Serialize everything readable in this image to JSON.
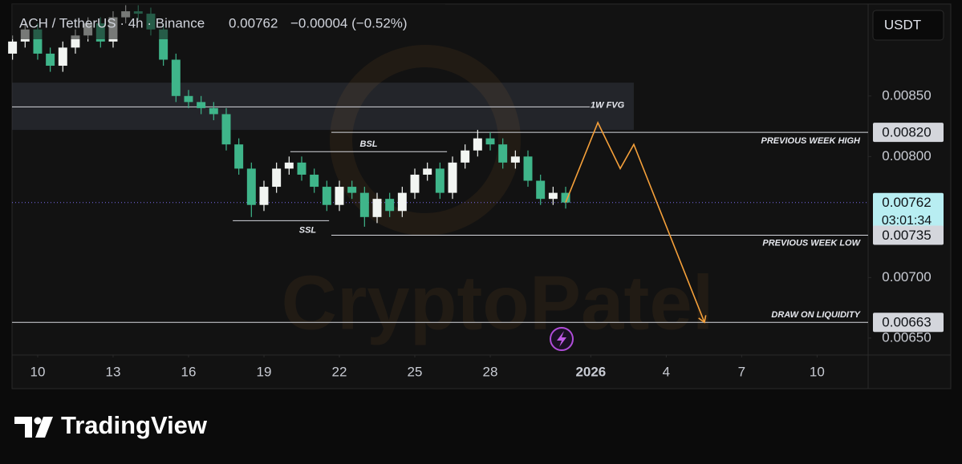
{
  "chart_data": {
    "type": "candlestick",
    "header": {
      "symbol": "ACH / TetherUS · 4h · Binance",
      "price": "0.00762",
      "change": "−0.00004 (−0.52%)"
    },
    "currency": "USDT",
    "watermark": "CryptoPatel",
    "brand": "TradingView",
    "up_color": "#f2f5f2",
    "down_color": "#3fb58a",
    "xlim": [
      -1.02,
      33.03
    ],
    "ylim": [
      0.00636,
      0.00926
    ],
    "xticks": [
      {
        "value": 0,
        "label": "10"
      },
      {
        "value": 3,
        "label": "13"
      },
      {
        "value": 6,
        "label": "16"
      },
      {
        "value": 9,
        "label": "19"
      },
      {
        "value": 12,
        "label": "22"
      },
      {
        "value": 15,
        "label": "25"
      },
      {
        "value": 18,
        "label": "28"
      },
      {
        "value": 22,
        "label": "2026"
      },
      {
        "value": 25,
        "label": "4"
      },
      {
        "value": 28,
        "label": "7"
      },
      {
        "value": 31,
        "label": "10"
      }
    ],
    "yticks": [
      {
        "value": 0.0085,
        "label": "0.00850"
      },
      {
        "value": 0.008,
        "label": "0.00800"
      },
      {
        "value": 0.007,
        "label": "0.00700"
      },
      {
        "value": 0.0065,
        "label": "0.00650"
      }
    ],
    "x": [
      -1,
      -0.5,
      0,
      0.5,
      1,
      1.5,
      2,
      2.5,
      3,
      3.5,
      4,
      4.5,
      5,
      5.5,
      6,
      6.5,
      7,
      7.5,
      8,
      8.5,
      9,
      9.5,
      10,
      10.5,
      11,
      11.5,
      12,
      12.5,
      13,
      13.5,
      14,
      14.5,
      15,
      15.5,
      16,
      16.5,
      17,
      17.5,
      18,
      18.5,
      19,
      19.5,
      20,
      20.5,
      21
    ],
    "open": [
      0.00885,
      0.00895,
      0.00905,
      0.00885,
      0.00875,
      0.0089,
      0.009,
      0.0091,
      0.00895,
      0.00915,
      0.0092,
      0.00918,
      0.00905,
      0.0088,
      0.0085,
      0.00845,
      0.0084,
      0.00835,
      0.0081,
      0.0079,
      0.0076,
      0.00775,
      0.0079,
      0.00795,
      0.00785,
      0.00775,
      0.0076,
      0.00775,
      0.0077,
      0.0075,
      0.00765,
      0.00755,
      0.0077,
      0.00785,
      0.0079,
      0.0077,
      0.00795,
      0.00805,
      0.00815,
      0.0081,
      0.00795,
      0.008,
      0.0078,
      0.00765,
      0.0077
    ],
    "high": [
      0.009,
      0.0091,
      0.0091,
      0.0089,
      0.00895,
      0.00905,
      0.00915,
      0.00915,
      0.0092,
      0.00925,
      0.00925,
      0.00923,
      0.0091,
      0.00885,
      0.00855,
      0.0085,
      0.00845,
      0.0084,
      0.00815,
      0.00795,
      0.0078,
      0.00795,
      0.008,
      0.008,
      0.0079,
      0.0078,
      0.0078,
      0.0078,
      0.00775,
      0.0077,
      0.0077,
      0.00775,
      0.0079,
      0.00795,
      0.00795,
      0.008,
      0.0081,
      0.00822,
      0.0082,
      0.00815,
      0.00805,
      0.00805,
      0.00785,
      0.00775,
      0.00775
    ],
    "low": [
      0.0088,
      0.0089,
      0.0088,
      0.0087,
      0.0087,
      0.00885,
      0.00895,
      0.0089,
      0.0089,
      0.0091,
      0.00913,
      0.009,
      0.00875,
      0.00845,
      0.0084,
      0.00835,
      0.0083,
      0.00805,
      0.00785,
      0.0075,
      0.00755,
      0.0077,
      0.00785,
      0.0078,
      0.0077,
      0.00755,
      0.00755,
      0.00765,
      0.00742,
      0.00745,
      0.0075,
      0.0075,
      0.00765,
      0.0078,
      0.00765,
      0.00765,
      0.0079,
      0.008,
      0.00805,
      0.0079,
      0.0079,
      0.00775,
      0.0076,
      0.0076,
      0.00757
    ],
    "close": [
      0.00895,
      0.00905,
      0.00885,
      0.00875,
      0.0089,
      0.009,
      0.0091,
      0.00895,
      0.00915,
      0.0092,
      0.00918,
      0.00905,
      0.0088,
      0.0085,
      0.00845,
      0.0084,
      0.00835,
      0.0081,
      0.0079,
      0.0076,
      0.00775,
      0.0079,
      0.00795,
      0.00785,
      0.00775,
      0.0076,
      0.00775,
      0.0077,
      0.0075,
      0.00765,
      0.00755,
      0.0077,
      0.00785,
      0.0079,
      0.0077,
      0.00795,
      0.00805,
      0.00815,
      0.0081,
      0.00795,
      0.008,
      0.0078,
      0.00765,
      0.0077,
      0.00762
    ],
    "fvg_zone": {
      "top": 0.00861,
      "bottom": 0.00822,
      "from": -1.02,
      "to": 23.71
    },
    "levels": [
      {
        "label": "1W FVG",
        "value": 0.00841,
        "from": -1.02,
        "to": 21.96
      },
      {
        "label": "PREVIOUS WEEK HIGH",
        "value": 0.0082,
        "from": 11.68,
        "to": 33.03
      },
      {
        "label": "BSL",
        "value": 0.00804,
        "from": 10.05,
        "to": 16.28
      },
      {
        "label": "SSL",
        "value": 0.00747,
        "from": 7.76,
        "to": 11.59
      },
      {
        "label": "PREVIOUS WEEK LOW",
        "value": 0.00735,
        "from": 11.68,
        "to": 33.03
      },
      {
        "label": "DRAW ON LIQUIDITY",
        "value": 0.00663,
        "from": -1.02,
        "to": 33.03
      }
    ],
    "current_price": 0.00762,
    "price_labels": [
      {
        "value": 0.0082,
        "label": "0.00820"
      },
      {
        "value": 0.00762,
        "label": "0.00762",
        "countdown": "03:01:34"
      },
      {
        "value": 0.00735,
        "label": "0.00735"
      },
      {
        "value": 0.00663,
        "label": "0.00663"
      }
    ],
    "projection": {
      "color": "#f5a03a",
      "x": [
        21.0,
        22.28,
        23.17,
        23.71,
        26.52
      ],
      "y": [
        0.00762,
        0.00828,
        0.0079,
        0.0081,
        0.00663
      ]
    }
  }
}
